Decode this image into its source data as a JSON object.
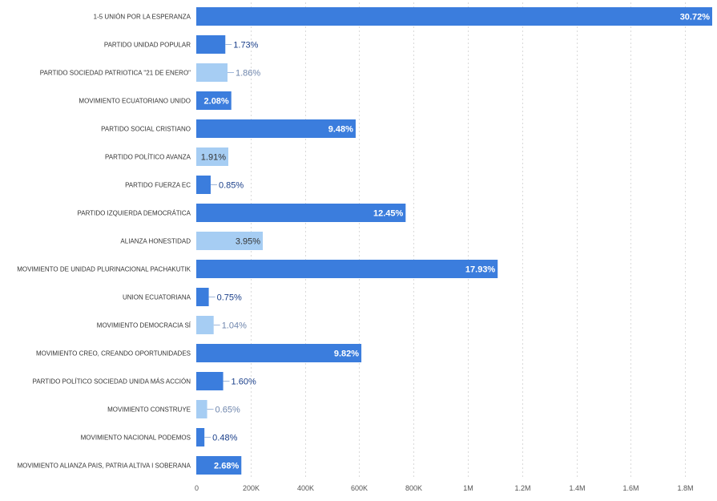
{
  "chart_data": {
    "type": "bar",
    "orientation": "horizontal",
    "title": "",
    "xlabel": "",
    "ylabel": "",
    "xlim": [
      0,
      1900000
    ],
    "grid": true,
    "x_ticks": [
      "0",
      "200K",
      "400K",
      "600K",
      "800K",
      "1M",
      "1.2M",
      "1.4M",
      "1.6M",
      "1.8M"
    ],
    "x_tick_values": [
      0,
      200000,
      400000,
      600000,
      800000,
      1000000,
      1200000,
      1400000,
      1600000,
      1800000
    ],
    "colors": {
      "dark": "#3b7ddd",
      "light": "#a6cdf3",
      "label_outside": "#1a3f8a"
    },
    "categories": [
      "1-5 UNIÓN POR LA ESPERANZA",
      "PARTIDO UNIDAD POPULAR",
      "PARTIDO SOCIEDAD PATRIOTICA \"21 DE ENERO\"",
      "MOVIMIENTO ECUATORIANO UNIDO",
      "PARTIDO SOCIAL CRISTIANO",
      "PARTIDO POLÍTICO AVANZA",
      "PARTIDO FUERZA EC",
      "PARTIDO IZQUIERDA DEMOCRÁTICA",
      "ALIANZA HONESTIDAD",
      "MOVIMIENTO DE UNIDAD PLURINACIONAL PACHAKUTIK",
      "UNION ECUATORIANA",
      "MOVIMIENTO DEMOCRACIA SÍ",
      "MOVIMIENTO CREO, CREANDO OPORTUNIDADES",
      "PARTIDO POLÍTICO SOCIEDAD UNIDA MÁS ACCIÓN",
      "MOVIMIENTO CONSTRUYE",
      "MOVIMIENTO NACIONAL PODEMOS",
      "MOVIMIENTO ALIANZA PAIS, PATRIA ALTIVA I SOBERANA"
    ],
    "values": [
      1900000,
      107000,
      115000,
      129000,
      587000,
      118000,
      53000,
      771000,
      245000,
      1110000,
      46000,
      64000,
      608000,
      99000,
      40000,
      30000,
      166000
    ],
    "percent_labels": [
      "30.72%",
      "1.73%",
      "1.86%",
      "2.08%",
      "9.48%",
      "1.91%",
      "0.85%",
      "12.45%",
      "3.95%",
      "17.93%",
      "0.75%",
      "1.04%",
      "9.82%",
      "1.60%",
      "0.65%",
      "0.48%",
      "2.68%"
    ],
    "shades": [
      "dark",
      "dark",
      "light",
      "dark",
      "dark",
      "light",
      "dark",
      "dark",
      "light",
      "dark",
      "dark",
      "light",
      "dark",
      "dark",
      "light",
      "dark",
      "dark"
    ]
  }
}
